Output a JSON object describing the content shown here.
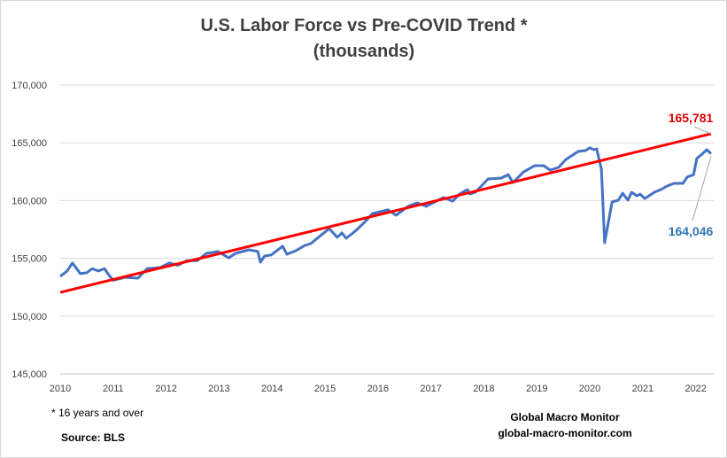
{
  "chart_data": {
    "type": "line",
    "title": "U.S. Labor Force vs Pre-COVID Trend *",
    "subtitle": "(thousands)",
    "xlabel": "",
    "ylabel": "",
    "xlim": [
      2010,
      2022.35
    ],
    "ylim": [
      145000,
      170000
    ],
    "x_ticks": [
      "2010",
      "2011",
      "2012",
      "2013",
      "2014",
      "2015",
      "2016",
      "2017",
      "2018",
      "2019",
      "2020",
      "2021",
      "2022"
    ],
    "y_ticks": [
      "145,000",
      "150,000",
      "155,000",
      "160,000",
      "165,000",
      "170,000"
    ],
    "grid": "horizontal",
    "legend": "none",
    "series": [
      {
        "color": "#4472c4",
        "end_label": "164,046",
        "label_color": "#2e75b6",
        "points": [
          [
            2010.0,
            153440
          ],
          [
            2010.13,
            153900
          ],
          [
            2010.23,
            154600
          ],
          [
            2010.38,
            153670
          ],
          [
            2010.5,
            153750
          ],
          [
            2010.6,
            154100
          ],
          [
            2010.72,
            153900
          ],
          [
            2010.84,
            154100
          ],
          [
            2010.9,
            153670
          ],
          [
            2011.0,
            153100
          ],
          [
            2011.22,
            153350
          ],
          [
            2011.47,
            153280
          ],
          [
            2011.64,
            154100
          ],
          [
            2011.89,
            154200
          ],
          [
            2012.06,
            154600
          ],
          [
            2012.22,
            154400
          ],
          [
            2012.39,
            154800
          ],
          [
            2012.59,
            154800
          ],
          [
            2012.76,
            155430
          ],
          [
            2012.98,
            155600
          ],
          [
            2013.18,
            155040
          ],
          [
            2013.31,
            155430
          ],
          [
            2013.56,
            155740
          ],
          [
            2013.73,
            155600
          ],
          [
            2013.78,
            154660
          ],
          [
            2013.86,
            155200
          ],
          [
            2013.98,
            155280
          ],
          [
            2014.2,
            156050
          ],
          [
            2014.28,
            155350
          ],
          [
            2014.45,
            155660
          ],
          [
            2014.62,
            156120
          ],
          [
            2014.73,
            156270
          ],
          [
            2014.9,
            156900
          ],
          [
            2015.08,
            157580
          ],
          [
            2015.23,
            156820
          ],
          [
            2015.32,
            157200
          ],
          [
            2015.4,
            156730
          ],
          [
            2015.57,
            157350
          ],
          [
            2015.74,
            158100
          ],
          [
            2015.9,
            158880
          ],
          [
            2016.19,
            159200
          ],
          [
            2016.34,
            158730
          ],
          [
            2016.57,
            159500
          ],
          [
            2016.74,
            159800
          ],
          [
            2016.91,
            159500
          ],
          [
            2017.07,
            159880
          ],
          [
            2017.24,
            160260
          ],
          [
            2017.41,
            159950
          ],
          [
            2017.54,
            160570
          ],
          [
            2017.69,
            160950
          ],
          [
            2017.74,
            160570
          ],
          [
            2017.84,
            160720
          ],
          [
            2018.08,
            161870
          ],
          [
            2018.33,
            161950
          ],
          [
            2018.46,
            162250
          ],
          [
            2018.55,
            161560
          ],
          [
            2018.75,
            162480
          ],
          [
            2018.96,
            163020
          ],
          [
            2019.13,
            163020
          ],
          [
            2019.25,
            162640
          ],
          [
            2019.41,
            162870
          ],
          [
            2019.55,
            163560
          ],
          [
            2019.78,
            164250
          ],
          [
            2019.92,
            164330
          ],
          [
            2020.0,
            164560
          ],
          [
            2020.08,
            164400
          ],
          [
            2020.13,
            164480
          ],
          [
            2020.22,
            162700
          ],
          [
            2020.28,
            156350
          ],
          [
            2020.42,
            159880
          ],
          [
            2020.54,
            160030
          ],
          [
            2020.62,
            160640
          ],
          [
            2020.72,
            160030
          ],
          [
            2020.79,
            160720
          ],
          [
            2020.89,
            160410
          ],
          [
            2020.95,
            160560
          ],
          [
            2021.04,
            160180
          ],
          [
            2021.22,
            160720
          ],
          [
            2021.34,
            160950
          ],
          [
            2021.46,
            161260
          ],
          [
            2021.59,
            161490
          ],
          [
            2021.76,
            161490
          ],
          [
            2021.84,
            162030
          ],
          [
            2021.96,
            162250
          ],
          [
            2022.02,
            163640
          ],
          [
            2022.12,
            164020
          ],
          [
            2022.21,
            164400
          ],
          [
            2022.29,
            164046
          ]
        ]
      },
      {
        "color": "#ff0000",
        "end_label": "165,781",
        "label_color": "#e00000",
        "points": [
          [
            2010.0,
            152050
          ],
          [
            2022.29,
            165781
          ]
        ]
      }
    ]
  },
  "notes": {
    "footnote": "* 16 years and over",
    "source": "Source:  BLS",
    "brand": "Global Macro Monitor",
    "website": "global-macro-monitor.com"
  }
}
